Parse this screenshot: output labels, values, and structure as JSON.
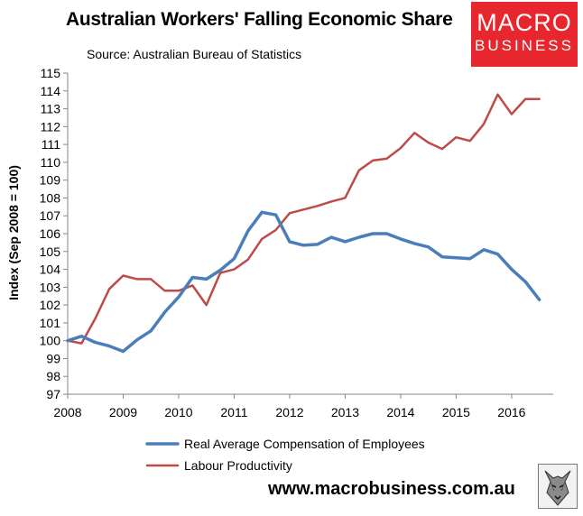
{
  "header": {
    "title": "Australian Workers' Falling Economic Share",
    "source": "Source: Australian Bureau of Statistics"
  },
  "logo": {
    "line1": "MACRO",
    "line2": "BUSINESS"
  },
  "footer": {
    "website": "www.macrobusiness.com.au"
  },
  "colors": {
    "compensation": "#4a7ebb",
    "productivity": "#be4b48",
    "logo_bg": "#e8262d"
  },
  "chart_data": {
    "type": "line",
    "title": "Australian Workers' Falling Economic Share",
    "ylabel": "Index (Sep 2008 = 100)",
    "xlabel": "",
    "xlim": [
      2008,
      2016.75
    ],
    "ylim": [
      97,
      115
    ],
    "x_ticks": [
      2008,
      2009,
      2010,
      2011,
      2012,
      2013,
      2014,
      2015,
      2016
    ],
    "y_ticks": [
      97,
      98,
      99,
      100,
      101,
      102,
      103,
      104,
      105,
      106,
      107,
      108,
      109,
      110,
      111,
      112,
      113,
      114,
      115
    ],
    "legend_position": "bottom",
    "grid": false,
    "series": [
      {
        "name": "Real Average Compensation of Employees",
        "color": "#4a7ebb",
        "x": [
          2008.0,
          2008.25,
          2008.5,
          2008.75,
          2009.0,
          2009.25,
          2009.5,
          2009.75,
          2010.0,
          2010.25,
          2010.5,
          2010.75,
          2011.0,
          2011.25,
          2011.5,
          2011.75,
          2012.0,
          2012.25,
          2012.5,
          2012.75,
          2013.0,
          2013.25,
          2013.5,
          2013.75,
          2014.0,
          2014.25,
          2014.5,
          2014.75,
          2015.0,
          2015.25,
          2015.5,
          2015.75,
          2016.0,
          2016.25,
          2016.5
        ],
        "values": [
          100.0,
          100.25,
          99.9,
          99.7,
          99.4,
          100.05,
          100.55,
          101.6,
          102.45,
          103.55,
          103.45,
          103.95,
          104.6,
          106.15,
          107.2,
          107.05,
          105.55,
          105.35,
          105.4,
          105.8,
          105.55,
          105.8,
          106.0,
          106.0,
          105.7,
          105.45,
          105.25,
          104.7,
          104.65,
          104.6,
          105.1,
          104.85,
          104.0,
          103.3,
          102.3
        ]
      },
      {
        "name": "Labour Productivity",
        "color": "#be4b48",
        "x": [
          2008.0,
          2008.25,
          2008.5,
          2008.75,
          2009.0,
          2009.25,
          2009.5,
          2009.75,
          2010.0,
          2010.25,
          2010.5,
          2010.75,
          2011.0,
          2011.25,
          2011.5,
          2011.75,
          2012.0,
          2012.25,
          2012.5,
          2012.75,
          2013.0,
          2013.25,
          2013.5,
          2013.75,
          2014.0,
          2014.25,
          2014.5,
          2014.75,
          2015.0,
          2015.25,
          2015.5,
          2015.75,
          2016.0,
          2016.25,
          2016.5
        ],
        "values": [
          100.0,
          99.85,
          101.25,
          102.9,
          103.65,
          103.45,
          103.45,
          102.8,
          102.8,
          103.1,
          102.0,
          103.8,
          104.0,
          104.55,
          105.7,
          106.2,
          107.15,
          107.35,
          107.55,
          107.8,
          108.0,
          109.55,
          110.1,
          110.2,
          110.8,
          111.65,
          111.1,
          110.75,
          111.4,
          111.2,
          112.15,
          113.8,
          112.7,
          113.55,
          113.55
        ]
      }
    ]
  }
}
